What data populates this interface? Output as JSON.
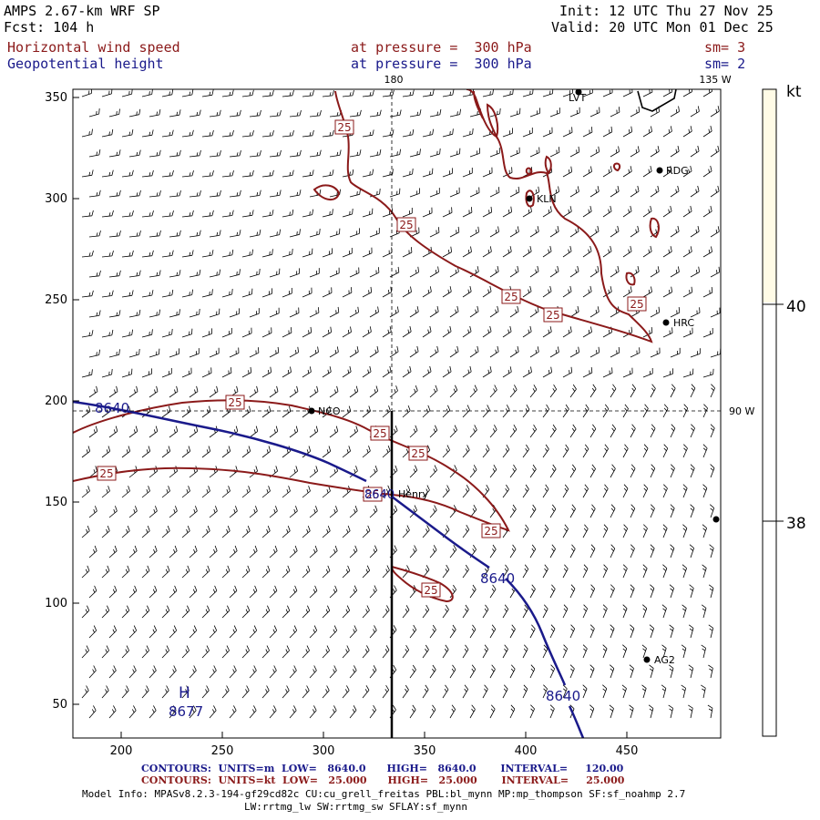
{
  "header": {
    "model": "AMPS 2.67-km WRF SP",
    "forecast": "Fcst: 104 h",
    "init": "Init: 12 UTC Thu 27 Nov 25",
    "valid": "Valid: 20 UTC Mon 01 Dec 25",
    "field1_name": "Horizontal wind speed",
    "field1_level": "at pressure =  300 hPa",
    "field1_sm": "sm= 3",
    "field2_name": "Geopotential height",
    "field2_level": "at pressure =  300 hPa",
    "field2_sm": "sm= 2"
  },
  "map": {
    "meridian_label": "180",
    "meridian_135_label": "135 W",
    "parallel_90_label": "90 W",
    "x_ticks": [
      "200",
      "250",
      "300",
      "350",
      "400",
      "450"
    ],
    "y_ticks": [
      "350",
      "300",
      "250",
      "200",
      "150",
      "100",
      "50"
    ],
    "stations": [
      {
        "id": "RDG",
        "label": "RDG"
      },
      {
        "id": "KLN",
        "label": "KLN"
      },
      {
        "id": "HRC",
        "label": "HRC"
      },
      {
        "id": "NCO",
        "label": "NCO"
      },
      {
        "id": "HENRY",
        "label": "Henry"
      },
      {
        "id": "AG2",
        "label": "AG2"
      },
      {
        "id": "LVT",
        "label": "LVT"
      }
    ],
    "wind_contour_label": "25",
    "height_contour_label": "8640",
    "high_marker": "H",
    "high_value": "8677"
  },
  "colorbar": {
    "unit": "kt",
    "labels": [
      "40",
      "38"
    ],
    "fill_color": "#fffbe6"
  },
  "footer": {
    "contours_height": "CONTOURS:  UNITS=m  LOW=   8640.0      HIGH=   8640.0       INTERVAL=     120.00",
    "contours_wind": "CONTOURS:  UNITS=kt  LOW=   25.000      HIGH=   25.000       INTERVAL=     25.000",
    "model_info": "Model Info: MPASv8.2.3-194-gf29cd82c CU:cu_grell_freitas PBL:bl_mynn MP:mp_thompson SF:sf_noahmp 2.7",
    "model_info2": "LW:rrtmg_lw SW:rrtmg_sw SFLAY:sf_mynn"
  },
  "colors": {
    "wind_contour": "#8b1a1a",
    "height_contour": "#1a1a8b",
    "barbs": "#000000"
  }
}
